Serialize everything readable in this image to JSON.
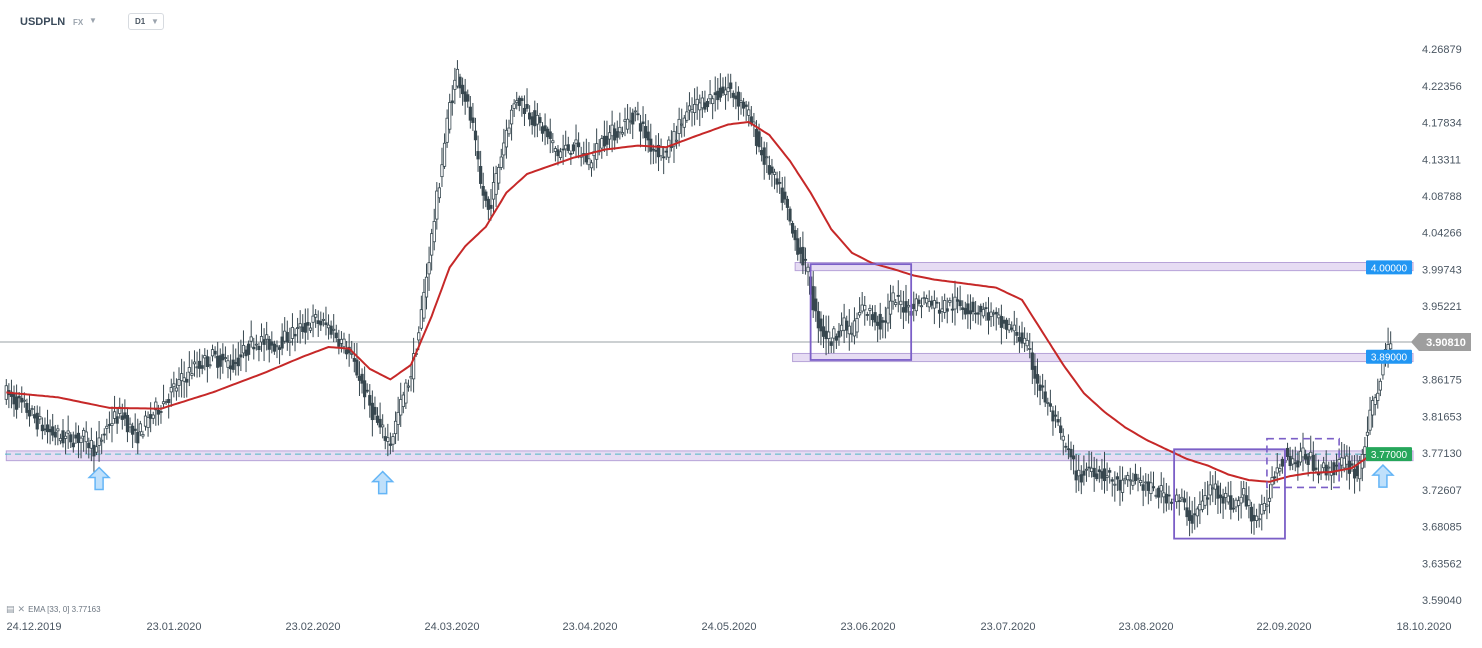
{
  "header": {
    "symbol": "USDPLN",
    "market": "FX",
    "timeframe": "D1"
  },
  "indicator": {
    "label": "EMA [33, 0] 3.77163"
  },
  "colors": {
    "candle": "#37474f",
    "ema": "#c62828",
    "zone_fill": "#e6dcf3",
    "zone_border": "#b7a3d8",
    "box": "#7b5fc7",
    "arrow": "#64b5f6",
    "dashed_line": "#4fb8c4",
    "label_blue": "#2196f3",
    "label_green": "#26a65b",
    "label_current": "#9e9e9e"
  },
  "chart_data": {
    "type": "candlestick",
    "instrument": "USDPLN",
    "timeframe": "D1",
    "y_axis": {
      "min": 3.5904,
      "max": 4.28,
      "ticks": [
        "4.26879",
        "4.22356",
        "4.17834",
        "4.13311",
        "4.08788",
        "4.04266",
        "3.99743",
        "3.95221",
        "3.86175",
        "3.81653",
        "3.77130",
        "3.72607",
        "3.68085",
        "3.63562",
        "3.59040"
      ]
    },
    "x_axis": {
      "ticks": [
        "24.12.2019",
        "23.01.2020",
        "23.02.2020",
        "24.03.2020",
        "23.04.2020",
        "24.05.2020",
        "23.06.2020",
        "23.07.2020",
        "23.08.2020",
        "22.09.2020",
        "18.10.2020"
      ]
    },
    "current_price": {
      "label": "3.90810",
      "value": 3.9081
    },
    "levels": [
      {
        "label": "4.00000",
        "value": 4.0,
        "color": "blue"
      },
      {
        "label": "3.89000",
        "value": 3.89,
        "color": "blue"
      },
      {
        "label": "3.77000",
        "value": 3.77,
        "color": "green"
      }
    ],
    "ema_period": 33,
    "ema_last": 3.77163,
    "price_path": [
      [
        0,
        3.845
      ],
      [
        8,
        3.825
      ],
      [
        15,
        3.8
      ],
      [
        22,
        3.79
      ],
      [
        30,
        3.79
      ],
      [
        35,
        3.775
      ],
      [
        40,
        3.81
      ],
      [
        45,
        3.82
      ],
      [
        50,
        3.79
      ],
      [
        57,
        3.82
      ],
      [
        65,
        3.85
      ],
      [
        72,
        3.875
      ],
      [
        80,
        3.89
      ],
      [
        88,
        3.88
      ],
      [
        96,
        3.91
      ],
      [
        104,
        3.905
      ],
      [
        112,
        3.92
      ],
      [
        120,
        3.935
      ],
      [
        126,
        3.925
      ],
      [
        132,
        3.9
      ],
      [
        137,
        3.865
      ],
      [
        141,
        3.83
      ],
      [
        145,
        3.8
      ],
      [
        149,
        3.785
      ],
      [
        153,
        3.83
      ],
      [
        157,
        3.87
      ],
      [
        160,
        3.92
      ],
      [
        163,
        3.99
      ],
      [
        166,
        4.06
      ],
      [
        169,
        4.13
      ],
      [
        172,
        4.2
      ],
      [
        175,
        4.24
      ],
      [
        178,
        4.21
      ],
      [
        181,
        4.17
      ],
      [
        184,
        4.1
      ],
      [
        187,
        4.07
      ],
      [
        190,
        4.11
      ],
      [
        194,
        4.17
      ],
      [
        198,
        4.21
      ],
      [
        203,
        4.19
      ],
      [
        208,
        4.17
      ],
      [
        214,
        4.14
      ],
      [
        220,
        4.15
      ],
      [
        226,
        4.13
      ],
      [
        232,
        4.16
      ],
      [
        238,
        4.17
      ],
      [
        244,
        4.19
      ],
      [
        250,
        4.15
      ],
      [
        256,
        4.14
      ],
      [
        262,
        4.18
      ],
      [
        268,
        4.2
      ],
      [
        274,
        4.21
      ],
      [
        280,
        4.22
      ],
      [
        286,
        4.2
      ],
      [
        290,
        4.17
      ],
      [
        293,
        4.14
      ],
      [
        296,
        4.12
      ],
      [
        299,
        4.1
      ],
      [
        302,
        4.08
      ],
      [
        305,
        4.04
      ],
      [
        308,
        4.02
      ],
      [
        311,
        3.99
      ],
      [
        314,
        3.94
      ],
      [
        317,
        3.92
      ],
      [
        320,
        3.91
      ],
      [
        324,
        3.93
      ],
      [
        328,
        3.92
      ],
      [
        332,
        3.95
      ],
      [
        336,
        3.94
      ],
      [
        340,
        3.93
      ],
      [
        344,
        3.96
      ],
      [
        350,
        3.95
      ],
      [
        356,
        3.96
      ],
      [
        362,
        3.95
      ],
      [
        368,
        3.955
      ],
      [
        374,
        3.95
      ],
      [
        380,
        3.945
      ],
      [
        386,
        3.93
      ],
      [
        392,
        3.92
      ],
      [
        396,
        3.9
      ],
      [
        400,
        3.86
      ],
      [
        404,
        3.83
      ],
      [
        408,
        3.8
      ],
      [
        412,
        3.77
      ],
      [
        416,
        3.74
      ],
      [
        420,
        3.755
      ],
      [
        426,
        3.745
      ],
      [
        432,
        3.73
      ],
      [
        438,
        3.74
      ],
      [
        444,
        3.725
      ],
      [
        450,
        3.72
      ],
      [
        456,
        3.71
      ],
      [
        460,
        3.69
      ],
      [
        464,
        3.71
      ],
      [
        468,
        3.73
      ],
      [
        472,
        3.72
      ],
      [
        476,
        3.705
      ],
      [
        480,
        3.72
      ],
      [
        484,
        3.69
      ],
      [
        488,
        3.7
      ],
      [
        492,
        3.75
      ],
      [
        496,
        3.77
      ],
      [
        500,
        3.76
      ],
      [
        504,
        3.77
      ],
      [
        508,
        3.755
      ],
      [
        512,
        3.75
      ],
      [
        516,
        3.755
      ],
      [
        520,
        3.76
      ],
      [
        524,
        3.745
      ],
      [
        528,
        3.8
      ],
      [
        531,
        3.84
      ],
      [
        534,
        3.88
      ],
      [
        537,
        3.91
      ]
    ],
    "ema_path": [
      [
        0,
        3.846
      ],
      [
        20,
        3.84
      ],
      [
        40,
        3.827
      ],
      [
        60,
        3.826
      ],
      [
        80,
        3.846
      ],
      [
        100,
        3.87
      ],
      [
        115,
        3.89
      ],
      [
        125,
        3.902
      ],
      [
        133,
        3.9
      ],
      [
        141,
        3.875
      ],
      [
        149,
        3.862
      ],
      [
        157,
        3.88
      ],
      [
        165,
        3.94
      ],
      [
        172,
        4.0
      ],
      [
        178,
        4.026
      ],
      [
        186,
        4.05
      ],
      [
        194,
        4.092
      ],
      [
        202,
        4.115
      ],
      [
        210,
        4.124
      ],
      [
        220,
        4.135
      ],
      [
        232,
        4.145
      ],
      [
        245,
        4.15
      ],
      [
        256,
        4.148
      ],
      [
        266,
        4.16
      ],
      [
        280,
        4.176
      ],
      [
        288,
        4.179
      ],
      [
        296,
        4.163
      ],
      [
        304,
        4.131
      ],
      [
        312,
        4.092
      ],
      [
        320,
        4.047
      ],
      [
        328,
        4.018
      ],
      [
        336,
        4.005
      ],
      [
        344,
        3.998
      ],
      [
        352,
        3.99
      ],
      [
        360,
        3.985
      ],
      [
        372,
        3.98
      ],
      [
        384,
        3.975
      ],
      [
        394,
        3.96
      ],
      [
        402,
        3.92
      ],
      [
        410,
        3.88
      ],
      [
        418,
        3.845
      ],
      [
        426,
        3.822
      ],
      [
        434,
        3.803
      ],
      [
        442,
        3.788
      ],
      [
        450,
        3.776
      ],
      [
        458,
        3.764
      ],
      [
        466,
        3.756
      ],
      [
        474,
        3.745
      ],
      [
        482,
        3.738
      ],
      [
        490,
        3.736
      ],
      [
        498,
        3.743
      ],
      [
        506,
        3.747
      ],
      [
        514,
        3.748
      ],
      [
        522,
        3.753
      ],
      [
        528,
        3.766
      ],
      [
        533,
        3.772
      ]
    ],
    "volatility_seed": 7,
    "zones": [
      {
        "from_x": 306,
        "to_x": 545,
        "low": 3.996,
        "high": 4.006
      },
      {
        "from_x": 305,
        "to_x": 545,
        "low": 3.884,
        "high": 3.894
      },
      {
        "from_x": 0,
        "to_x": 545,
        "low": 3.762,
        "high": 3.774
      }
    ],
    "boxes": [
      {
        "from_x": 312,
        "to_x": 351,
        "low": 3.886,
        "high": 4.004,
        "style": "solid"
      },
      {
        "from_x": 453,
        "to_x": 496,
        "low": 3.666,
        "high": 3.776,
        "style": "solid"
      },
      {
        "from_x": 489,
        "to_x": 517,
        "low": 3.729,
        "high": 3.789,
        "style": "dashed"
      }
    ],
    "arrows": [
      {
        "x": 36,
        "y": 3.74
      },
      {
        "x": 146,
        "y": 3.735
      },
      {
        "x": 534,
        "y": 3.743
      }
    ],
    "date_start": "24.12.2019",
    "date_end": "18.10.2020"
  }
}
